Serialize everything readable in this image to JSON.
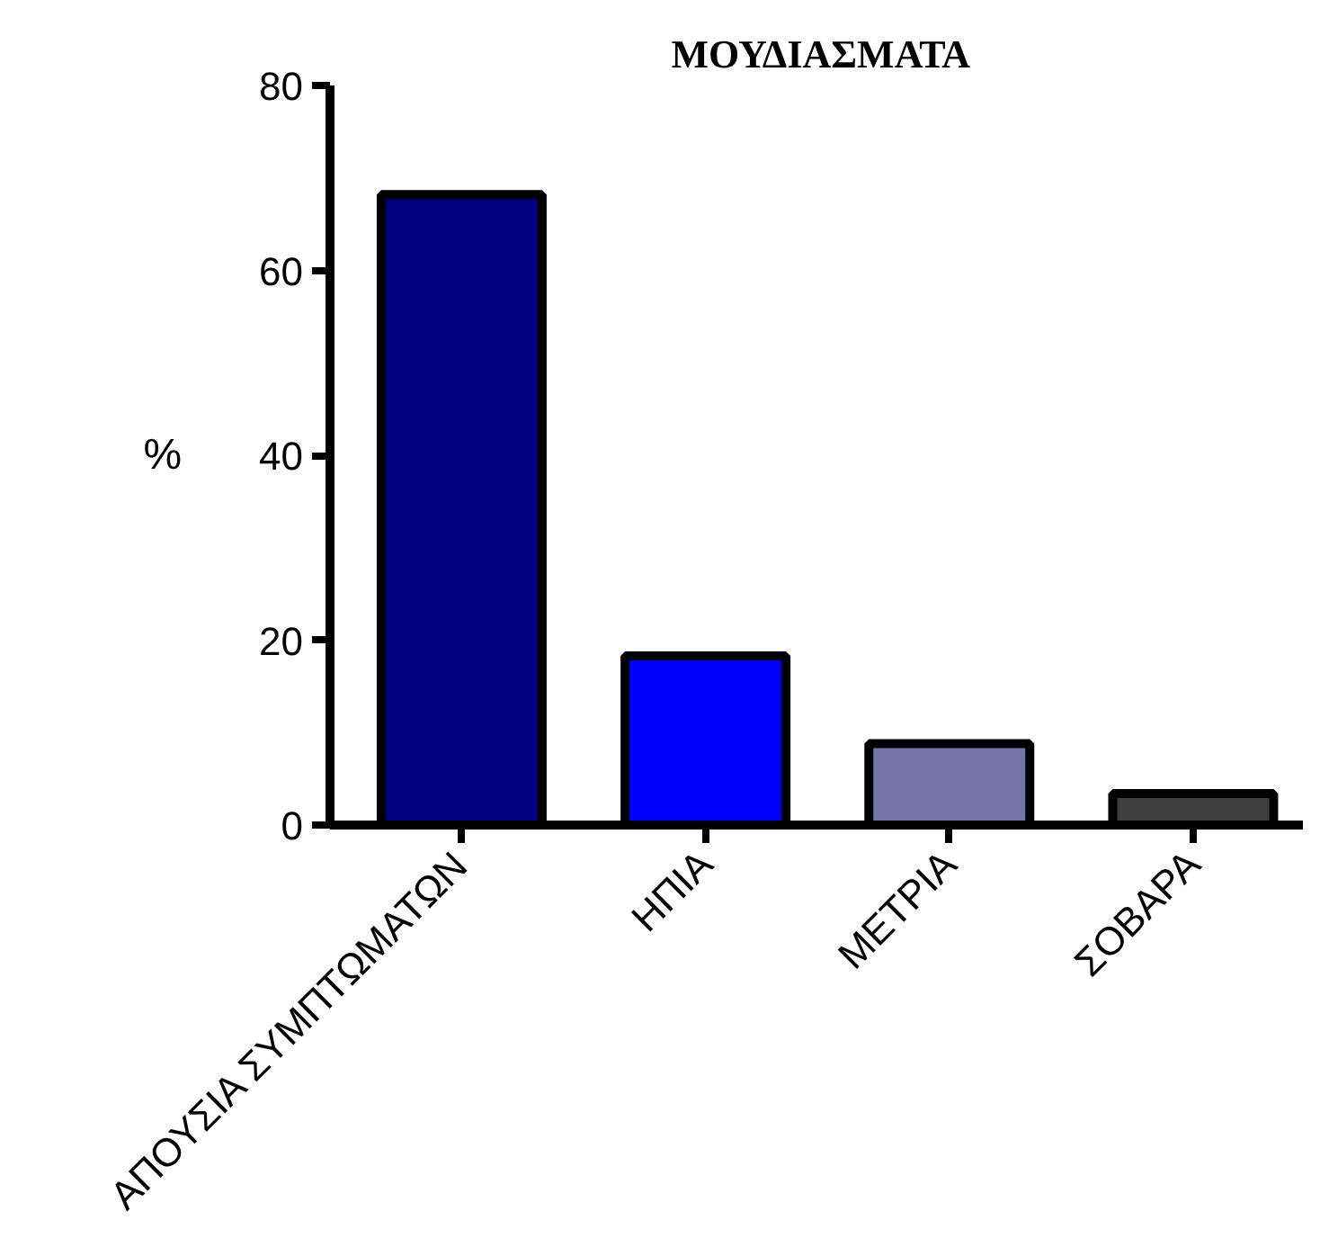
{
  "chart_data": {
    "type": "bar",
    "title": "ΜΟΥΔΙΑΣΜΑΤΑ",
    "ylabel": "%",
    "categories": [
      "ΑΠΟΥΣΙΑ ΣΥΜΠΤΩΜΑΤΩΝ",
      "ΗΠΙΑ",
      "ΜΕΤΡΙΑ",
      "ΣΟΒΑΡΑ"
    ],
    "values": [
      68.2,
      18.3,
      8.8,
      3.4
    ],
    "colors": [
      "#000080",
      "#0000ff",
      "#7474a8",
      "#404040"
    ],
    "ylim": [
      0,
      80
    ],
    "yticks": [
      0,
      20,
      40,
      60,
      80
    ],
    "grid": false
  }
}
